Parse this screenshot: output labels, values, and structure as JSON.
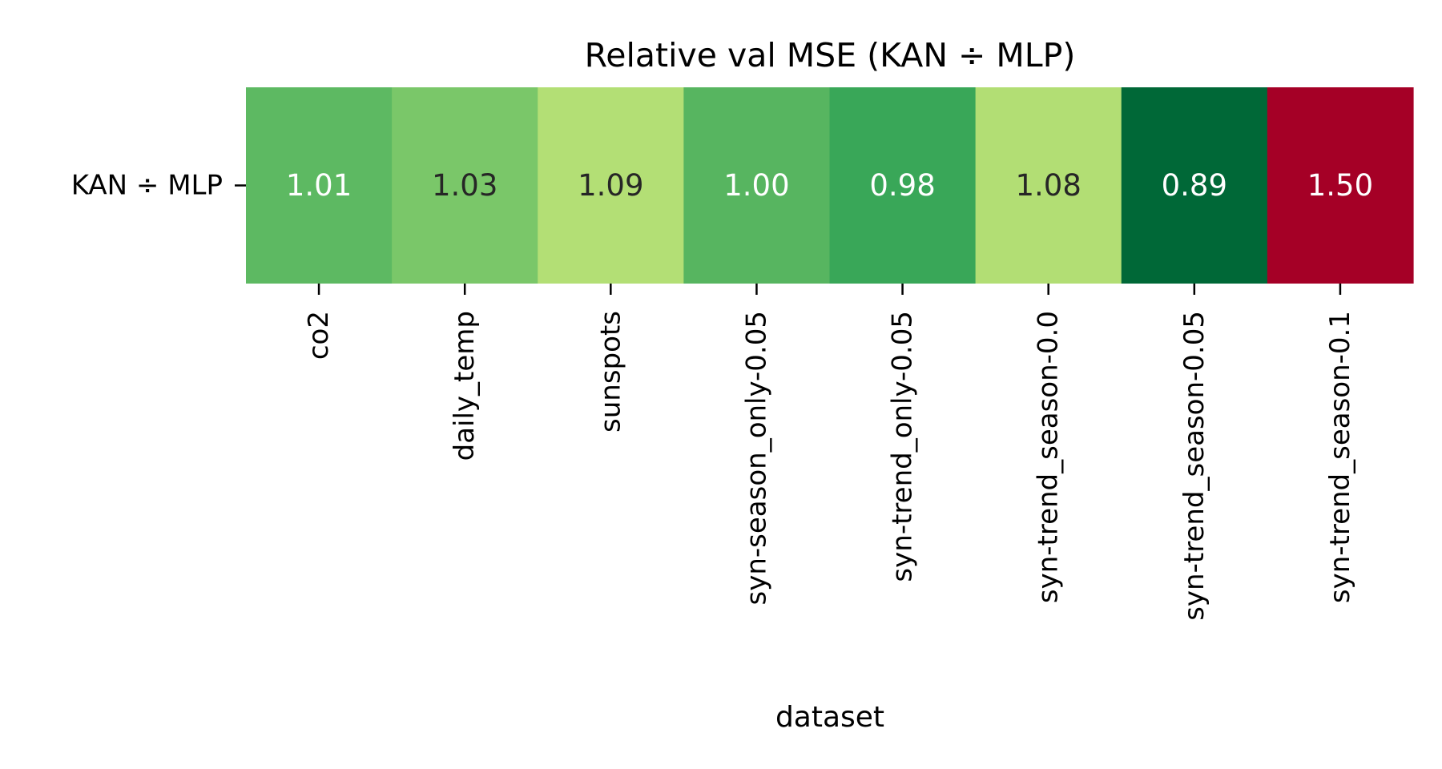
{
  "chart_data": {
    "type": "heatmap",
    "title": "Relative val MSE (KAN ÷ MLP)",
    "xlabel": "dataset",
    "ylabel": "",
    "x_categories": [
      "co2",
      "daily_temp",
      "sunspots",
      "syn-season_only-0.05",
      "syn-trend_only-0.05",
      "syn-trend_season-0.0",
      "syn-trend_season-0.05",
      "syn-trend_season-0.1"
    ],
    "y_categories": [
      "KAN ÷ MLP"
    ],
    "values": [
      [
        1.01,
        1.03,
        1.09,
        1.0,
        0.98,
        1.08,
        0.89,
        1.5
      ]
    ],
    "value_labels": [
      [
        "1.01",
        "1.03",
        "1.09",
        "1.00",
        "0.98",
        "1.08",
        "0.89",
        "1.50"
      ]
    ],
    "colormap": "RdYlGn_r",
    "cell_colors": [
      "#5db962",
      "#7ac769",
      "#b3df75",
      "#57b560",
      "#39a758",
      "#b2de74",
      "#006837",
      "#a50026"
    ],
    "annotation_colors": [
      "#ffffff",
      "#262626",
      "#262626",
      "#ffffff",
      "#ffffff",
      "#262626",
      "#ffffff",
      "#ffffff"
    ],
    "colorbar": false,
    "grid": false
  }
}
